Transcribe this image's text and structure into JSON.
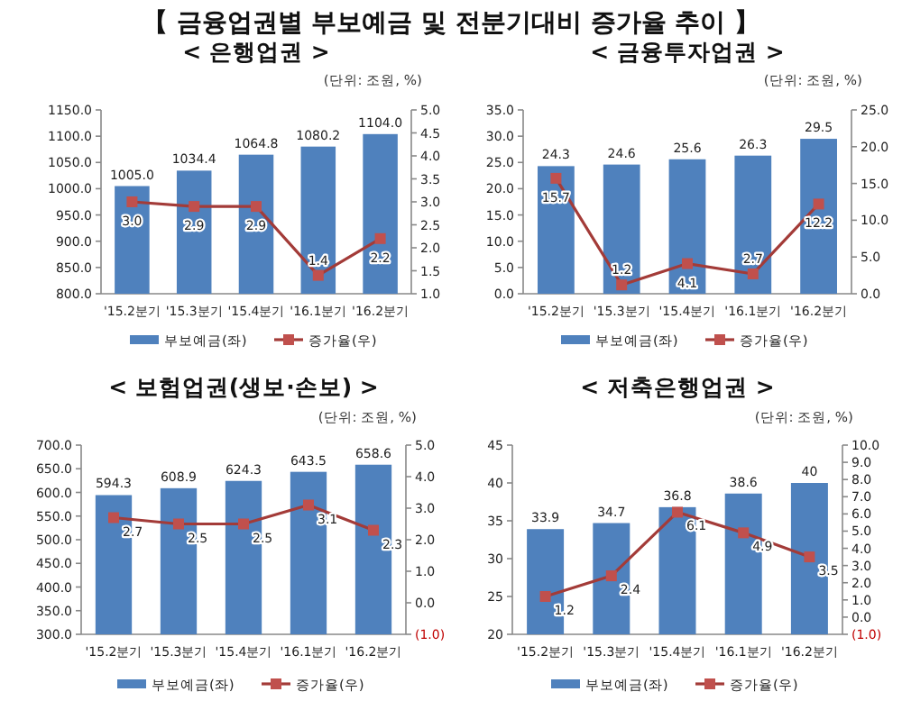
{
  "chart_data": [
    {
      "type": "bar",
      "title": "【 금융업권별 부보예금 및 전분기대비 증가율 추이 】",
      "subtitle": "< 은행업권 >",
      "annotations": [
        "(단위: 조원, %)"
      ],
      "categories": [
        "'15.2분기",
        "'15.3분기",
        "'15.4분기",
        "'16.1분기",
        "'16.2분기"
      ],
      "series": [
        {
          "name": "부보예금(좌)",
          "color": "#4f81bd",
          "values": [
            1005.0,
            1034.4,
            1064.8,
            1080.2,
            1104.0
          ]
        },
        {
          "name": "증가율(우)",
          "type": "line",
          "axis": "y2",
          "color": "#a33b38",
          "values": [
            3.0,
            2.9,
            2.9,
            1.4,
            2.2
          ],
          "value_labels": [
            "3.0",
            "2.9",
            "2.9",
            "1.4",
            "2.2"
          ]
        }
      ],
      "ylim": [
        800,
        1150
      ],
      "yticks": [
        {
          "value": 800,
          "label": "800.0"
        },
        {
          "value": 850,
          "label": "850.0"
        },
        {
          "value": 900,
          "label": "900.0"
        },
        {
          "value": 950,
          "label": "950.0"
        },
        {
          "value": 1000,
          "label": "1000.0"
        },
        {
          "value": 1050,
          "label": "1050.0"
        },
        {
          "value": 1100,
          "label": "1100.0"
        },
        {
          "value": 1150,
          "label": "1150.0"
        }
      ],
      "y2lim": [
        1,
        5
      ],
      "y2ticks": [
        {
          "value": 1,
          "label": "1.0"
        },
        {
          "value": 1.5,
          "label": "1.5"
        },
        {
          "value": 2,
          "label": "2.0"
        },
        {
          "value": 2.5,
          "label": "2.5"
        },
        {
          "value": 3,
          "label": "3.0"
        },
        {
          "value": 3.5,
          "label": "3.5"
        },
        {
          "value": 4,
          "label": "4.0"
        },
        {
          "value": 4.5,
          "label": "4.5"
        },
        {
          "value": 5,
          "label": "5.0"
        }
      ],
      "value_labels": [
        "1005.0",
        "1034.4",
        "1064.8",
        "1080.2",
        "1104.0"
      ],
      "marker": "square",
      "legend": "bottom",
      "grid": false
    },
    {
      "type": "bar",
      "subtitle": "< 금융투자업권 >",
      "annotations": [
        "(단위: 조원, %)"
      ],
      "categories": [
        "'15.2분기",
        "'15.3분기",
        "'15.4분기",
        "'16.1분기",
        "'16.2분기"
      ],
      "series": [
        {
          "name": "부보예금(좌)",
          "color": "#4f81bd",
          "values": [
            24.3,
            24.6,
            25.6,
            26.3,
            29.5
          ]
        },
        {
          "name": "증가율(우)",
          "type": "line",
          "axis": "y2",
          "color": "#a33b38",
          "values": [
            15.7,
            1.2,
            4.1,
            2.7,
            12.2
          ]
        }
      ],
      "ylim": [
        0,
        35
      ],
      "yticks": [
        {
          "value": 0,
          "label": "0.0"
        },
        {
          "value": 5,
          "label": "5.0"
        },
        {
          "value": 10,
          "label": "10.0"
        },
        {
          "value": 15,
          "label": "15.0"
        },
        {
          "value": 20,
          "label": "20.0"
        },
        {
          "value": 25,
          "label": "25.0"
        },
        {
          "value": 30,
          "label": "30.0"
        },
        {
          "value": 35,
          "label": "35.0"
        }
      ],
      "y2lim": [
        0,
        25
      ],
      "y2ticks": [
        {
          "value": 0,
          "label": "0.0"
        },
        {
          "value": 5,
          "label": "5.0"
        },
        {
          "value": 10,
          "label": "10.0"
        },
        {
          "value": 15,
          "label": "15.0"
        },
        {
          "value": 20,
          "label": "20.0"
        },
        {
          "value": 25,
          "label": "25.0"
        }
      ],
      "data_labels": true,
      "marker": "square",
      "legend": "bottom",
      "grid": false
    },
    {
      "type": "bar",
      "subtitle": "< 보험업권(생보·손보) >",
      "annotations": [
        "(단위: 조원, %)"
      ],
      "categories": [
        "'15.2분기",
        "'15.3분기",
        "'15.4분기",
        "'16.1분기",
        "'16.2분기"
      ],
      "series": [
        {
          "name": "부보예금(좌)",
          "color": "#4f81bd",
          "values": [
            594.3,
            608.9,
            624.3,
            643.5,
            658.6
          ]
        },
        {
          "name": "증가율(우)",
          "type": "line",
          "axis": "y2",
          "color": "#a33b38",
          "values": [
            2.7,
            2.5,
            2.5,
            3.1,
            2.3
          ]
        }
      ],
      "ylim": [
        300,
        700
      ],
      "yticks": [
        {
          "value": 300,
          "label": "300.0"
        },
        {
          "value": 350,
          "label": "350.0"
        },
        {
          "value": 400,
          "label": "400.0"
        },
        {
          "value": 450,
          "label": "450.0"
        },
        {
          "value": 500,
          "label": "500.0"
        },
        {
          "value": 550,
          "label": "550.0"
        },
        {
          "value": 600,
          "label": "600.0"
        },
        {
          "value": 650,
          "label": "650.0"
        },
        {
          "value": 700,
          "label": "700.0"
        }
      ],
      "y2lim": [
        -1,
        5
      ],
      "y2ticks": [
        {
          "value": -1,
          "label": "(1.0)"
        },
        {
          "value": 0,
          "label": "0.0"
        },
        {
          "value": 1,
          "label": "1.0"
        },
        {
          "value": 2,
          "label": "2.0"
        },
        {
          "value": 3,
          "label": "3.0"
        },
        {
          "value": 4,
          "label": "4.0"
        },
        {
          "value": 5,
          "label": "5.0"
        }
      ],
      "data_labels": true,
      "marker": "square",
      "legend": "bottom",
      "grid": false
    },
    {
      "type": "bar",
      "subtitle": "< 저축은행업권 >",
      "annotations": [
        "(단위: 조원, %)"
      ],
      "categories": [
        "'15.2분기",
        "'15.3분기",
        "'15.4분기",
        "'16.1분기",
        "'16.2분기"
      ],
      "series": [
        {
          "name": "부보예금(좌)",
          "color": "#4f81bd",
          "values": [
            33.9,
            34.7,
            36.8,
            38.6,
            40
          ]
        },
        {
          "name": "증가율(우)",
          "type": "line",
          "axis": "y2",
          "color": "#a33b38",
          "values": [
            1.2,
            2.4,
            6.1,
            4.9,
            3.5
          ]
        }
      ],
      "ylim": [
        20,
        45
      ],
      "yticks": [
        20,
        25,
        30,
        35,
        40,
        45
      ],
      "y2lim": [
        -1,
        10
      ],
      "y2ticks": [
        {
          "value": -1,
          "label": "(1.0)"
        },
        {
          "value": 0,
          "label": "0.0"
        },
        {
          "value": 1,
          "label": "1.0"
        },
        {
          "value": 2,
          "label": "2.0"
        },
        {
          "value": 3,
          "label": "3.0"
        },
        {
          "value": 4,
          "label": "4.0"
        },
        {
          "value": 5,
          "label": "5.0"
        },
        {
          "value": 6,
          "label": "6.0"
        },
        {
          "value": 7,
          "label": "7.0"
        },
        {
          "value": 8,
          "label": "8.0"
        },
        {
          "value": 9,
          "label": "9.0"
        },
        {
          "value": 10,
          "label": "10.0"
        }
      ],
      "data_labels": true,
      "marker": "square",
      "legend": "bottom",
      "grid": false
    }
  ]
}
